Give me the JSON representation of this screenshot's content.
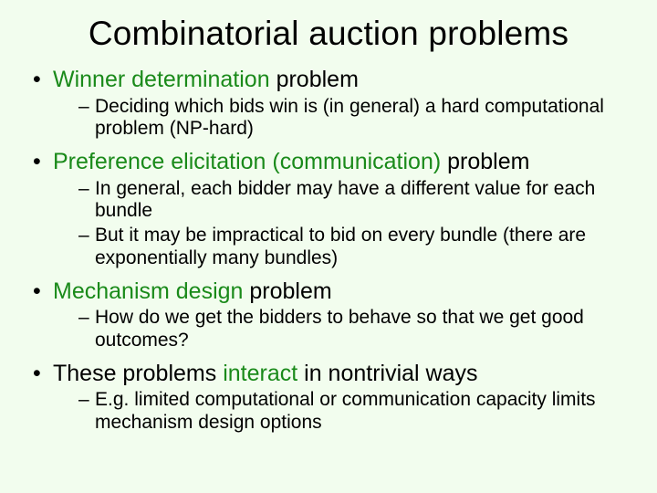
{
  "colors": {
    "background": "#f2fdee",
    "text": "#000000",
    "accent": "#1a8a1a"
  },
  "typography": {
    "family": "Arial",
    "title_size_pt": 28,
    "l1_size_pt": 19,
    "l2_size_pt": 16
  },
  "title": "Combinatorial auction problems",
  "bullets": [
    {
      "pre": "",
      "accent": "Winner determination",
      "post": " problem",
      "sub": [
        "Deciding which bids win is (in general) a hard computational problem (NP-hard)"
      ]
    },
    {
      "pre": "",
      "accent": "Preference elicitation (communication)",
      "post": " problem",
      "sub": [
        "In general, each bidder may have a different value for each bundle",
        "But it may be impractical to bid on every bundle (there are exponentially many bundles)"
      ]
    },
    {
      "pre": "",
      "accent": "Mechanism design",
      "post": " problem",
      "sub": [
        "How do we get the bidders to behave so that we get good outcomes?"
      ]
    },
    {
      "pre": "These problems ",
      "accent": "interact",
      "post": " in nontrivial ways",
      "sub": [
        "E.g. limited computational or communication capacity limits mechanism design options"
      ]
    }
  ]
}
